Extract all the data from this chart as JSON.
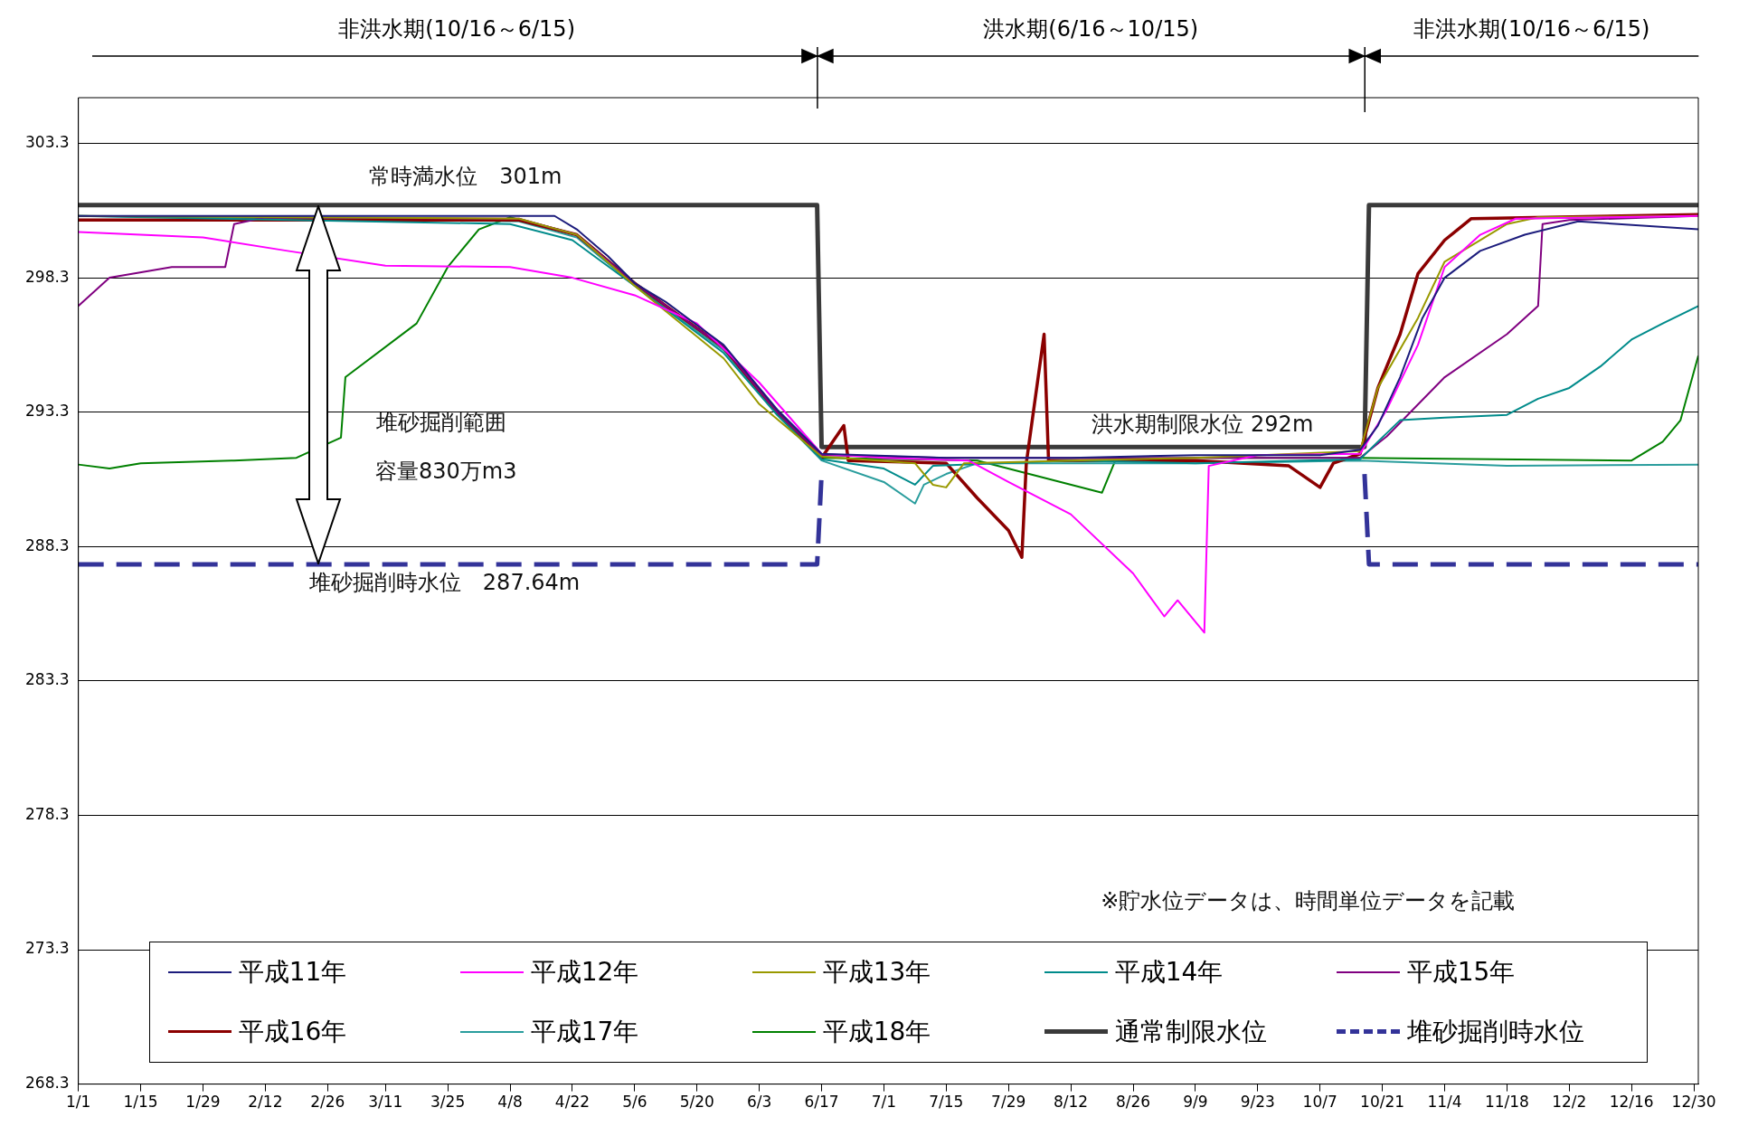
{
  "chart_data": {
    "type": "line",
    "ylim": [
      268.3,
      305.0
    ],
    "yticks": [
      268.3,
      273.3,
      278.3,
      283.3,
      288.3,
      293.3,
      298.3,
      303.3
    ],
    "xlim": [
      "--01-01",
      "--12-31"
    ],
    "xticks": [
      {
        "value": "--01-01",
        "label": "1/1"
      },
      {
        "value": "--01-15",
        "label": "1/15"
      },
      {
        "value": "--01-29",
        "label": "1/29"
      },
      {
        "value": "--02-12",
        "label": "2/12"
      },
      {
        "value": "--02-26",
        "label": "2/26"
      },
      {
        "value": "--03-11",
        "label": "3/11"
      },
      {
        "value": "--03-25",
        "label": "3/25"
      },
      {
        "value": "--04-08",
        "label": "4/8"
      },
      {
        "value": "--04-22",
        "label": "4/22"
      },
      {
        "value": "--05-06",
        "label": "5/6"
      },
      {
        "value": "--05-20",
        "label": "5/20"
      },
      {
        "value": "--06-03",
        "label": "6/3"
      },
      {
        "value": "--06-17",
        "label": "6/17"
      },
      {
        "value": "--07-01",
        "label": "7/1"
      },
      {
        "value": "--07-15",
        "label": "7/15"
      },
      {
        "value": "--07-29",
        "label": "7/29"
      },
      {
        "value": "--08-12",
        "label": "8/12"
      },
      {
        "value": "--08-26",
        "label": "8/26"
      },
      {
        "value": "--09-09",
        "label": "9/9"
      },
      {
        "value": "--09-23",
        "label": "9/23"
      },
      {
        "value": "--10-07",
        "label": "10/7"
      },
      {
        "value": "--10-21",
        "label": "10/21"
      },
      {
        "value": "--11-04",
        "label": "11/4"
      },
      {
        "value": "--11-18",
        "label": "11/18"
      },
      {
        "value": "--12-02",
        "label": "12/2"
      },
      {
        "value": "--12-16",
        "label": "12/16"
      },
      {
        "value": "--12-30",
        "label": "12/30"
      }
    ],
    "grid": "y",
    "legend": "bottom",
    "marker": "none",
    "series": [
      {
        "name": "平成11年",
        "color": "#1c1c7c",
        "x": [
          "--01-01",
          "--04-18",
          "--04-23",
          "--04-30",
          "--05-06",
          "--05-13",
          "--05-26",
          "--06-07",
          "--06-17",
          "--07-15",
          "--08-12",
          "--09-09",
          "--10-07",
          "--10-16",
          "--10-20",
          "--10-25",
          "--10-30",
          "--11-04",
          "--11-12",
          "--11-22",
          "--12-04",
          "--12-31"
        ],
        "values": [
          300.6,
          300.6,
          300.1,
          299.1,
          298.1,
          297.4,
          295.8,
          293.4,
          291.75,
          291.6,
          291.6,
          291.7,
          291.7,
          291.9,
          292.8,
          294.6,
          296.8,
          298.3,
          299.3,
          299.9,
          300.4,
          300.1
        ]
      },
      {
        "name": "平成12年",
        "color": "#ff00ff",
        "x": [
          "--01-01",
          "--01-29",
          "--02-17",
          "--03-11",
          "--04-08",
          "--04-22",
          "--05-06",
          "--05-20",
          "--06-03",
          "--06-17",
          "--07-01",
          "--07-20",
          "--07-29",
          "--08-12",
          "--08-26",
          "--09-02",
          "--09-05",
          "--09-11",
          "--09-12",
          "--09-23",
          "--10-16",
          "--10-22",
          "--10-29",
          "--11-04",
          "--11-12",
          "--11-20",
          "--12-31"
        ],
        "values": [
          300.0,
          299.8,
          299.3,
          298.75,
          298.7,
          298.3,
          297.65,
          296.6,
          294.4,
          291.75,
          291.6,
          291.5,
          290.7,
          289.5,
          287.3,
          285.7,
          286.3,
          285.1,
          291.3,
          291.7,
          291.75,
          293.4,
          295.8,
          298.7,
          299.9,
          300.5,
          300.6
        ]
      },
      {
        "name": "平成13年",
        "color": "#999900",
        "x": [
          "--01-01",
          "--04-10",
          "--04-23",
          "--05-06",
          "--05-26",
          "--06-03",
          "--06-17",
          "--07-08",
          "--07-12",
          "--07-15",
          "--07-19",
          "--08-12",
          "--09-09",
          "--10-16",
          "--10-20",
          "--10-29",
          "--11-04",
          "--11-18",
          "--11-25",
          "--12-31"
        ],
        "values": [
          300.6,
          300.5,
          299.9,
          298.0,
          295.3,
          293.6,
          291.65,
          291.4,
          290.6,
          290.5,
          291.4,
          291.5,
          291.6,
          291.85,
          294.2,
          296.8,
          298.9,
          300.3,
          300.55,
          300.6
        ]
      },
      {
        "name": "平成14年",
        "color": "#008b8b",
        "x": [
          "--01-01",
          "--04-08",
          "--04-22",
          "--05-06",
          "--05-26",
          "--06-07",
          "--06-17",
          "--07-01",
          "--07-08",
          "--07-12",
          "--08-12",
          "--09-09",
          "--10-16",
          "--10-20",
          "--10-25",
          "--11-04",
          "--11-18",
          "--11-25",
          "--12-02",
          "--12-09",
          "--12-16",
          "--12-23",
          "--12-31"
        ],
        "values": [
          300.6,
          300.3,
          299.7,
          298.0,
          295.5,
          293.2,
          291.55,
          291.2,
          290.6,
          291.3,
          291.5,
          291.4,
          291.55,
          292.2,
          293.0,
          293.1,
          293.2,
          293.8,
          294.2,
          295.0,
          296.0,
          296.6,
          297.25
        ]
      },
      {
        "name": "平成15年",
        "color": "#800080",
        "x": [
          "--01-01",
          "--01-08",
          "--01-22",
          "--02-03",
          "--02-05",
          "--02-12",
          "--04-10",
          "--04-23",
          "--05-06",
          "--05-26",
          "--06-07",
          "--06-17",
          "--07-15",
          "--08-12",
          "--09-09",
          "--10-16",
          "--10-22",
          "--11-04",
          "--11-18",
          "--11-25",
          "--11-26",
          "--12-02",
          "--12-31"
        ],
        "values": [
          297.25,
          298.3,
          298.7,
          298.7,
          300.3,
          300.55,
          300.5,
          299.9,
          298.1,
          295.7,
          293.3,
          291.7,
          291.6,
          291.6,
          291.6,
          291.6,
          292.4,
          294.6,
          296.2,
          297.25,
          300.3,
          300.45,
          300.6
        ]
      },
      {
        "name": "平成16年",
        "color": "#8b0000",
        "x": [
          "--01-01",
          "--04-10",
          "--04-23",
          "--05-06",
          "--05-26",
          "--06-07",
          "--06-17",
          "--06-22",
          "--06-23",
          "--07-15",
          "--07-22",
          "--07-29",
          "--08-01",
          "--08-02",
          "--08-06",
          "--08-07",
          "--09-09",
          "--09-30",
          "--10-07",
          "--10-10",
          "--10-16",
          "--10-20",
          "--10-25",
          "--10-29",
          "--11-04",
          "--11-10",
          "--12-31"
        ],
        "values": [
          300.45,
          300.45,
          299.9,
          298.1,
          295.7,
          293.3,
          291.6,
          292.8,
          291.5,
          291.4,
          290.1,
          288.9,
          287.9,
          291.4,
          296.2,
          291.5,
          291.5,
          291.3,
          290.5,
          291.4,
          291.75,
          294.2,
          296.2,
          298.45,
          299.7,
          300.5,
          300.65
        ]
      },
      {
        "name": "平成17年",
        "color": "#2a9d9d",
        "x": [
          "--01-01",
          "--04-10",
          "--04-23",
          "--05-06",
          "--05-26",
          "--06-07",
          "--06-17",
          "--07-01",
          "--07-08",
          "--07-10",
          "--07-15",
          "--07-22",
          "--08-12",
          "--09-09",
          "--10-16",
          "--11-18",
          "--12-31"
        ],
        "values": [
          300.6,
          300.4,
          299.8,
          298.0,
          295.6,
          293.2,
          291.5,
          290.7,
          289.9,
          290.6,
          291.0,
          291.4,
          291.4,
          291.4,
          291.5,
          291.3,
          291.35
        ]
      },
      {
        "name": "平成18年",
        "color": "#008000",
        "x": [
          "--01-01",
          "--01-08",
          "--01-15",
          "--02-05",
          "--02-19",
          "--03-01",
          "--03-02",
          "--03-18",
          "--03-25",
          "--04-01",
          "--04-08",
          "--04-23",
          "--05-06",
          "--05-26",
          "--06-07",
          "--06-17",
          "--07-22",
          "--08-19",
          "--08-22",
          "--09-09",
          "--10-16",
          "--12-16",
          "--12-23",
          "--12-27",
          "--12-31"
        ],
        "values": [
          291.35,
          291.2,
          291.4,
          291.5,
          291.6,
          292.35,
          294.6,
          296.6,
          298.7,
          300.1,
          300.55,
          299.9,
          298.1,
          295.7,
          293.3,
          291.6,
          291.5,
          290.3,
          291.5,
          291.6,
          291.6,
          291.5,
          292.2,
          293.0,
          295.4
        ]
      },
      {
        "name": "通常制限水位",
        "color": "#3a3a3a",
        "x": [
          "--01-01",
          "--06-16",
          "--06-17",
          "--10-17",
          "--10-18",
          "--12-31"
        ],
        "values": [
          301,
          301,
          292,
          292,
          301,
          301
        ]
      },
      {
        "name": "堆砂掘削時水位",
        "color": "#333399",
        "line_style": "dashed",
        "x": [
          "--01-01",
          "--06-16",
          "--06-17",
          "--08-15",
          "--10-17",
          "--10-18",
          "--12-31"
        ],
        "values": [
          287.64,
          287.64,
          291.0,
          null,
          291.0,
          287.64,
          287.64
        ]
      }
    ],
    "annotations": [
      "非洪水期(10/16～6/15)",
      "洪水期(6/16～10/15)",
      "非洪水期(10/16～6/15)",
      "常時満水位　301m",
      "洪水期制限水位 292m",
      "堆砂掘削時水位　287.64m",
      "堆砂掘削範囲",
      "容量830万m3",
      "※貯水位データは、時間単位データを記載"
    ]
  }
}
